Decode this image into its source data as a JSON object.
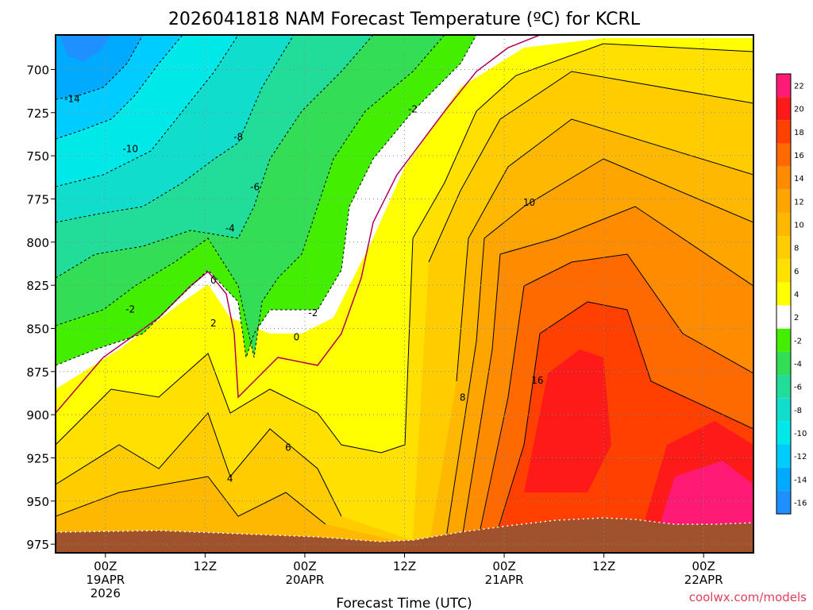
{
  "chart_data": {
    "type": "heatmap",
    "title": "2026041818 NAM Forecast Temperature (ºC) for KCRL",
    "xlabel": "Forecast Time (UTC)",
    "ylabel": "",
    "credit": "coolwx.com/models",
    "x_unit": "forecast hour",
    "xlim": [
      0,
      84
    ],
    "ylim": [
      680,
      980
    ],
    "y_ticks": [
      700,
      725,
      750,
      775,
      800,
      825,
      850,
      875,
      900,
      925,
      950,
      975
    ],
    "x_ticks": [
      {
        "hour": 6,
        "line1": "00Z",
        "line2": "19APR",
        "line3": "2026"
      },
      {
        "hour": 18,
        "line1": "12Z",
        "line2": "",
        "line3": ""
      },
      {
        "hour": 30,
        "line1": "00Z",
        "line2": "20APR",
        "line3": ""
      },
      {
        "hour": 42,
        "line1": "12Z",
        "line2": "",
        "line3": ""
      },
      {
        "hour": 54,
        "line1": "00Z",
        "line2": "21APR",
        "line3": ""
      },
      {
        "hour": 66,
        "line1": "12Z",
        "line2": "",
        "line3": ""
      },
      {
        "hour": 78,
        "line1": "00Z",
        "line2": "22APR",
        "line3": ""
      }
    ],
    "colorbar": {
      "levels": [
        22,
        20,
        18,
        16,
        14,
        12,
        10,
        8,
        6,
        4,
        2,
        -2,
        -4,
        -6,
        -8,
        -10,
        -12,
        -14,
        -16
      ],
      "colors": [
        "#ff1a75",
        "#ff1a1a",
        "#ff4000",
        "#ff6a00",
        "#ff8c00",
        "#ffa500",
        "#ffb800",
        "#ffcc00",
        "#ffe000",
        "#ffff00",
        "#ffffff",
        "#44ee00",
        "#33dd55",
        "#22dd99",
        "#11ddcc",
        "#00e8e8",
        "#00ccff",
        "#00aaff",
        "#1e90ff"
      ]
    },
    "contour_labels": [
      {
        "text": "-14",
        "hour": 2,
        "p": 718
      },
      {
        "text": "-10",
        "hour": 9,
        "p": 747
      },
      {
        "text": "-8",
        "hour": 22,
        "p": 740
      },
      {
        "text": "-6",
        "hour": 24,
        "p": 769
      },
      {
        "text": "-4",
        "hour": 21,
        "p": 793
      },
      {
        "text": "-2",
        "hour": 9,
        "p": 840
      },
      {
        "text": "-2",
        "hour": 31,
        "p": 842
      },
      {
        "text": "-2",
        "hour": 43,
        "p": 724
      },
      {
        "text": "0",
        "hour": 19,
        "p": 823
      },
      {
        "text": "0",
        "hour": 29,
        "p": 856
      },
      {
        "text": "2",
        "hour": 19,
        "p": 848
      },
      {
        "text": "4",
        "hour": 21,
        "p": 938
      },
      {
        "text": "6",
        "hour": 28,
        "p": 920
      },
      {
        "text": "8",
        "hour": 49,
        "p": 891
      },
      {
        "text": "10",
        "hour": 57,
        "p": 778
      },
      {
        "text": "16",
        "hour": 58,
        "p": 881
      }
    ]
  }
}
